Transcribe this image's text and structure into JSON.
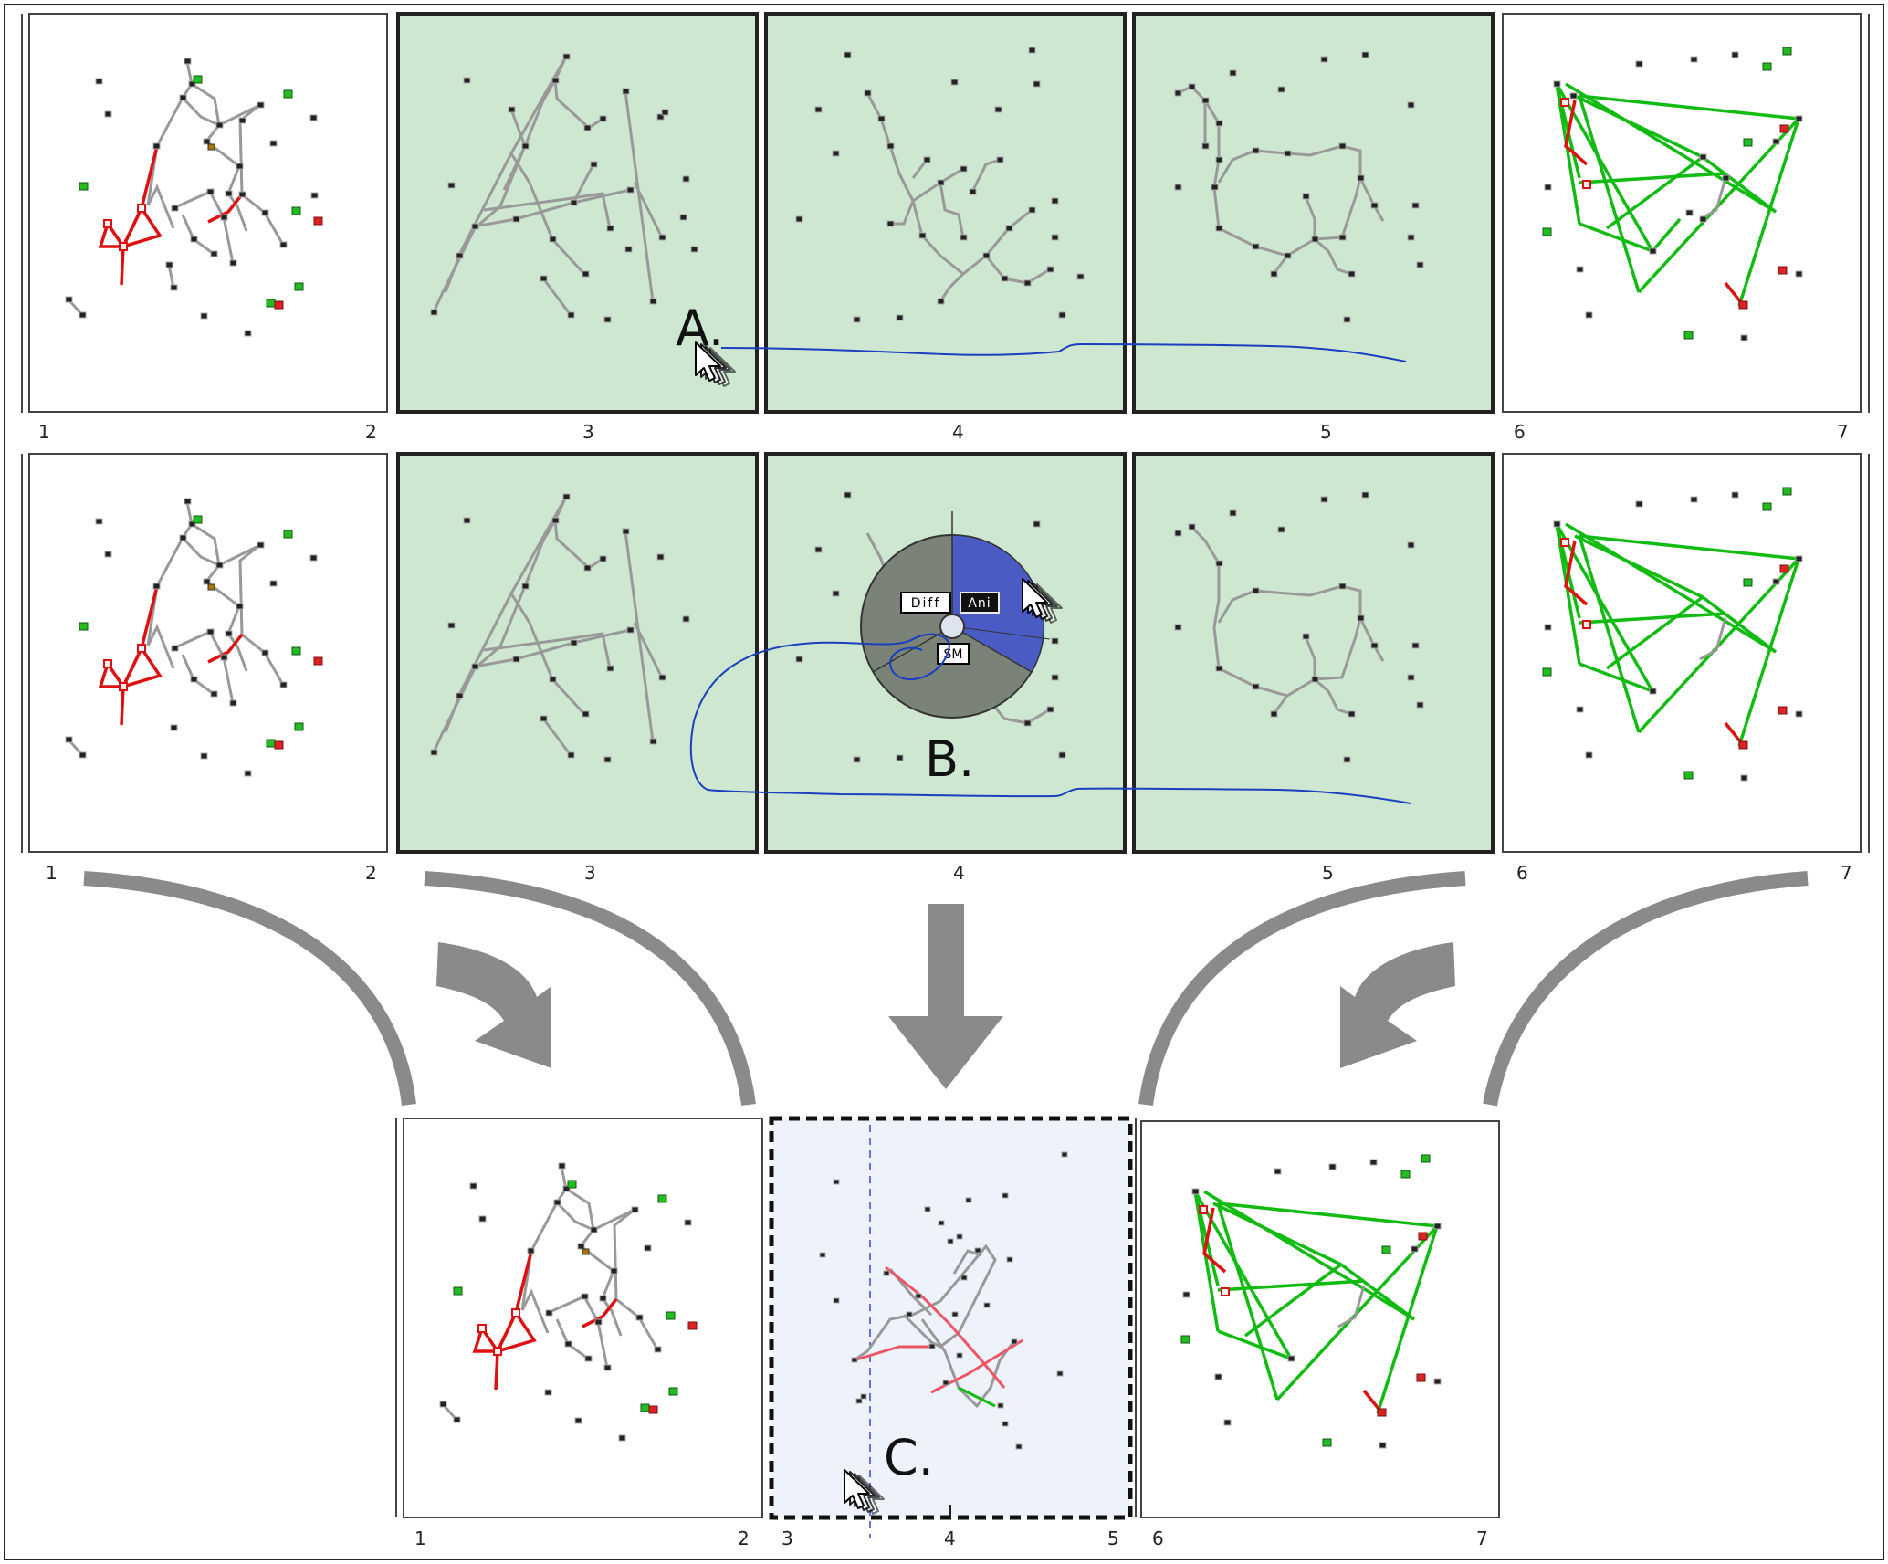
{
  "figure": {
    "row_labels": [
      "1",
      "2",
      "3",
      "4",
      "5",
      "6",
      "7"
    ],
    "bottom_labels": [
      "1",
      "2",
      "3",
      "4",
      "5",
      "6",
      "7"
    ],
    "callouts": {
      "a": "A.",
      "b": "B.",
      "c": "C."
    },
    "pie_menu": {
      "diff": "Diff",
      "ani": "Ani",
      "sm": "SM"
    },
    "colors": {
      "active_panel_fill": "#cde7d0",
      "diff_panel_fill": "#eef2fb",
      "edge_gray": "#999999",
      "edge_red": "#dd1111",
      "edge_green": "#11bb11",
      "node_green": "#22bb22",
      "node_red": "#dd2222",
      "gesture_path": "#1a3fbf",
      "pie_blue": "#4a5cc4",
      "pie_gray": "#7b8277",
      "arrow_gray": "#8a8a8a"
    }
  }
}
